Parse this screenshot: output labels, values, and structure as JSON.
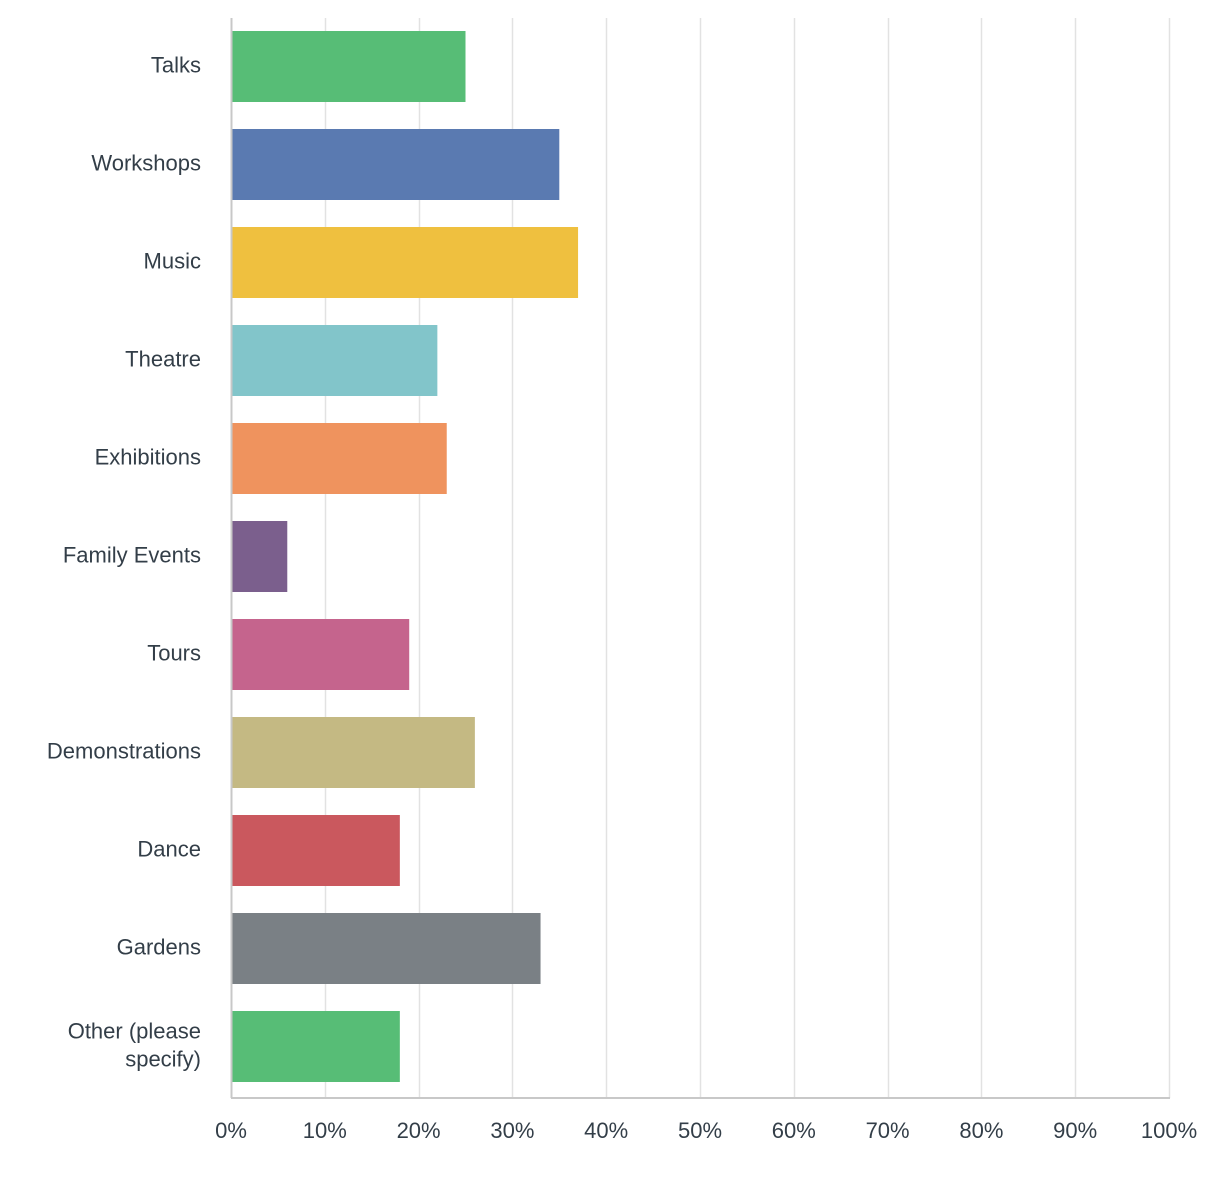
{
  "chart_data": {
    "type": "bar",
    "orientation": "horizontal",
    "categories": [
      "Talks",
      "Workshops",
      "Music",
      "Theatre",
      "Exhibitions",
      "Family Events",
      "Tours",
      "Demonstrations",
      "Dance",
      "Gardens",
      "Other (please specify)"
    ],
    "category_label_lines": [
      [
        "Talks"
      ],
      [
        "Workshops"
      ],
      [
        "Music"
      ],
      [
        "Theatre"
      ],
      [
        "Exhibitions"
      ],
      [
        "Family Events"
      ],
      [
        "Tours"
      ],
      [
        "Demonstrations"
      ],
      [
        "Dance"
      ],
      [
        "Gardens"
      ],
      [
        "Other (please",
        "specify)"
      ]
    ],
    "values": [
      25,
      35,
      37,
      22,
      23,
      6,
      19,
      26,
      18,
      33,
      18
    ],
    "colors": [
      "#57bd76",
      "#5a7ab1",
      "#efc03f",
      "#82c5ca",
      "#ef935e",
      "#7b5f8d",
      "#c5648d",
      "#c4b983",
      "#ca585e",
      "#7a8085",
      "#57bd76"
    ],
    "xlim": [
      0,
      100
    ],
    "x_ticks": [
      0,
      10,
      20,
      30,
      40,
      50,
      60,
      70,
      80,
      90,
      100
    ],
    "x_tick_labels": [
      "0%",
      "10%",
      "20%",
      "30%",
      "40%",
      "50%",
      "60%",
      "70%",
      "80%",
      "90%",
      "100%"
    ],
    "grid": true,
    "legend": "none",
    "title": "",
    "xlabel": "",
    "ylabel": ""
  }
}
